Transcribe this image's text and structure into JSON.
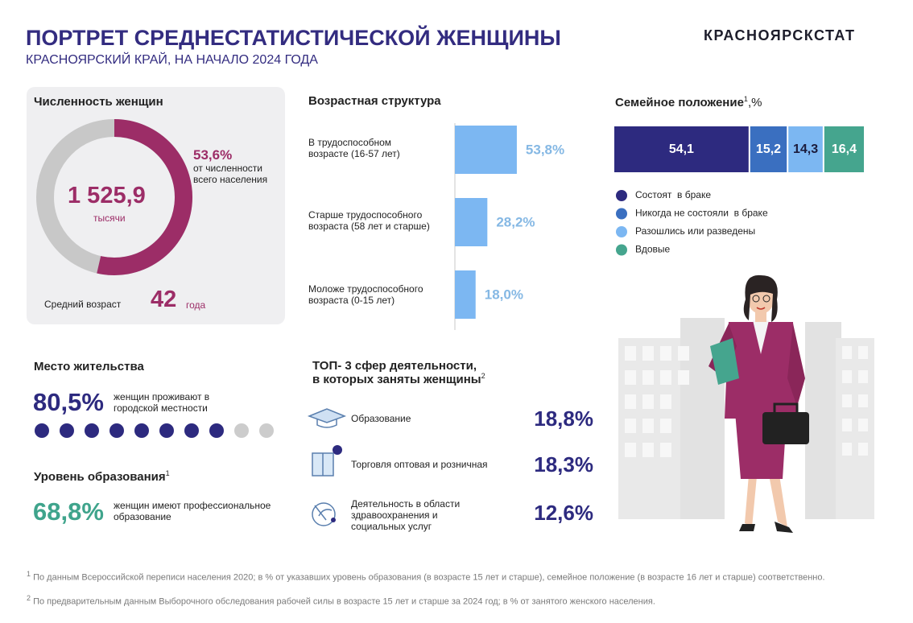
{
  "header": {
    "title": "ПОРТРЕТ СРЕДНЕСТАТИСТИЧЕСКОЙ ЖЕНЩИНЫ",
    "subtitle": "КРАСНОЯРСКИЙ КРАЙ, НА НАЧАЛО 2024 ГОДА",
    "logo": "КРАСНОЯРСКСТАТ"
  },
  "population": {
    "title": "Численность женщин",
    "total": "1 525,9",
    "total_unit": "тысячи",
    "share": {
      "value": 53.6,
      "label": "53,6%"
    },
    "share_note": "от численности всего населения",
    "color": "#9c2d67",
    "rest_color": "#c8c8c8",
    "age_label": "Средний возраст",
    "age": 42,
    "age_unit": "года"
  },
  "age_structure": {
    "title": "Возрастная структура",
    "categories": [
      "В трудоспособном возрасте (16-57 лет)",
      "Старше трудоспособного возраста (58 лет и старше)",
      "Моложе трудоспособного возраста (0-15 лет)"
    ],
    "values": [
      53.8,
      28.2,
      18.0
    ],
    "value_labels": [
      "53,8%",
      "28,2%",
      "18,0%"
    ],
    "color": "#7cb7f2",
    "label_color": "#85b8e4"
  },
  "marital": {
    "title": "Семейное положение",
    "title_note": "1",
    "title_unit": ",%",
    "series": [
      {
        "name": "Состоят  в браке",
        "color": "#2d2a7f",
        "value": 54.1,
        "label": "54,1",
        "label_color": "#ffffff"
      },
      {
        "name": "Никогда не состояли  в браке",
        "color": "#3a6fc0",
        "value": 15.2,
        "label": "15,2",
        "label_color": "#ffffff"
      },
      {
        "name": "Разошлись или разведены",
        "color": "#7cb7f2",
        "value": 14.3,
        "label": "14,3",
        "label_color": "#1c1c3c"
      },
      {
        "name": "Вдовые",
        "color": "#45a58e",
        "value": 16.4,
        "label": "16,4",
        "label_color": "#ffffff"
      }
    ]
  },
  "residence": {
    "title": "Место жительства",
    "value": {
      "value": 80.5,
      "label": "80,5%"
    },
    "note": "женщин проживают в городской местности",
    "color": "#2d2a7f",
    "empty_color": "#cccccc"
  },
  "education": {
    "title": "Уровень образования",
    "title_note": "1",
    "value": "68,8%",
    "note": "женщин имеют профессиональное образование"
  },
  "top_sectors": {
    "title": [
      "ТОП- 3 сфер деятельности,",
      "в которых заняты женщины"
    ],
    "title_note": "2",
    "items": [
      {
        "name": "Образование",
        "value": "18,8%"
      },
      {
        "name": "Торговля  оптовая  и розничная",
        "value": "18,3%"
      },
      {
        "name": "Деятельность  в области здравоохранения и социальных  услуг",
        "value": "12,6%"
      }
    ]
  },
  "footnotes": [
    {
      "mark": "1",
      "text": "По данным Всероссийской переписи населения 2020; в % от указавших уровень образования (в возрасте 15 лет и старше), семейное положение (в возрасте 16 лет и старше) соответственно."
    },
    {
      "mark": "2",
      "text": "По предварительным данным Выборочного обследования рабочей силы в возрасте 15 лет и старше за 2024 год; в % от занятого женского населения."
    }
  ]
}
